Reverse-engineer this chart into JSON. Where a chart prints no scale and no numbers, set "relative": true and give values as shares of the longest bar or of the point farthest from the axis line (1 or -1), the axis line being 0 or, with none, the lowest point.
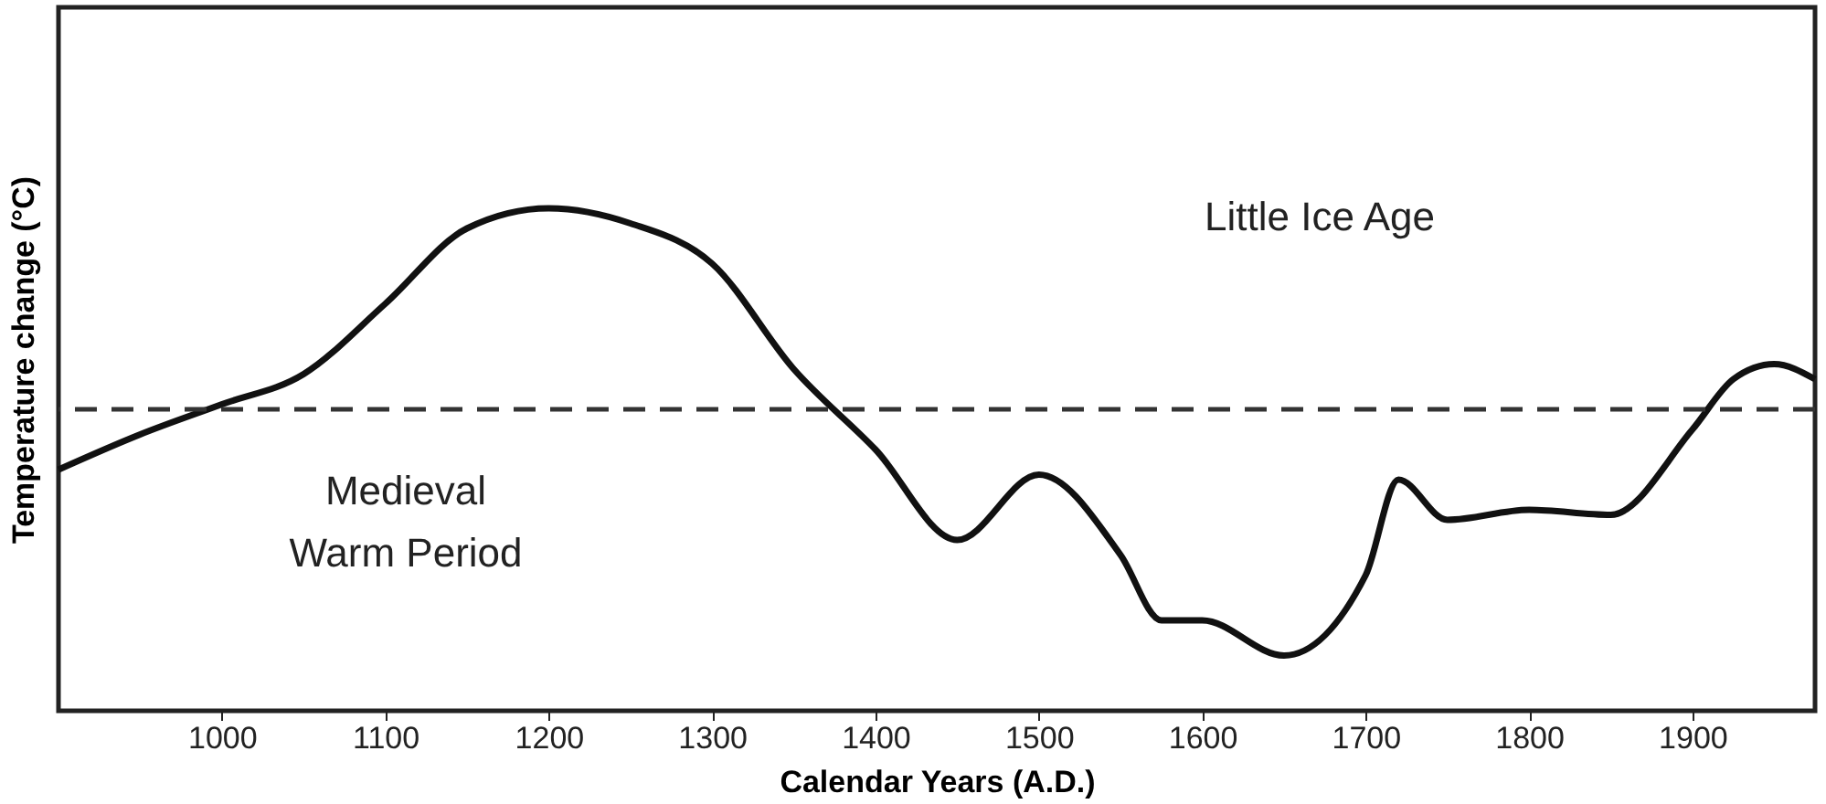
{
  "chart_data": {
    "type": "line",
    "relative": true,
    "xlabel": "Calendar Years (A.D.)",
    "ylabel": "Temperature change (°C)",
    "xlim": [
      900,
      1975
    ],
    "xticks": [
      1000,
      1100,
      1200,
      1300,
      1400,
      1500,
      1600,
      1700,
      1800,
      1900
    ],
    "x": [
      900,
      950,
      1000,
      1050,
      1100,
      1150,
      1200,
      1250,
      1300,
      1350,
      1400,
      1450,
      1500,
      1550,
      1575,
      1600,
      1650,
      1700,
      1720,
      1750,
      1800,
      1850,
      1900,
      1925,
      1950,
      1975
    ],
    "series": [
      {
        "color": "#111111",
        "values": [
          0.48,
          0.55,
          0.61,
          0.67,
          0.81,
          0.96,
          1.0,
          0.97,
          0.89,
          0.68,
          0.52,
          0.34,
          0.47,
          0.31,
          0.18,
          0.18,
          0.11,
          0.27,
          0.46,
          0.38,
          0.4,
          0.39,
          0.56,
          0.66,
          0.69,
          0.66
        ]
      }
    ],
    "ref_lines": [
      {
        "axis": "y",
        "value": 0.6,
        "line_style": "dashed",
        "color": "#333333"
      }
    ],
    "annotations": [
      "Little Ice Age",
      "Medieval\nWarm Period"
    ],
    "grid": false,
    "marker": "none",
    "line_style": "solid"
  }
}
